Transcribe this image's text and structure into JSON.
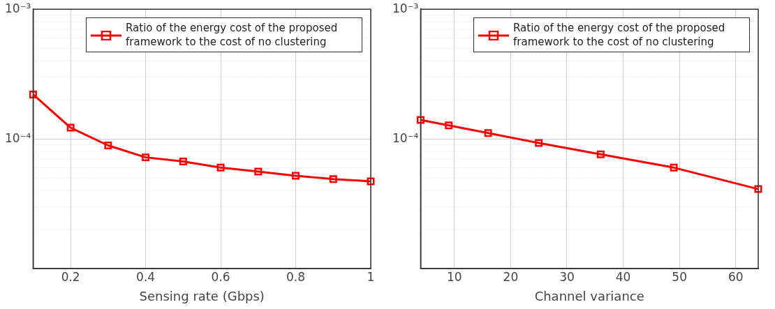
{
  "chart_data": [
    {
      "type": "line",
      "xlabel": "Sensing rate (Gbps)",
      "x": [
        0.1,
        0.2,
        0.3,
        0.4,
        0.5,
        0.6,
        0.7,
        0.8,
        0.9,
        1
      ],
      "series": [
        {
          "name": "Ratio of the energy cost of the proposed framework to the cost of no clustering",
          "color": "#ff0000",
          "values": [
            0.00022,
            0.000122,
            8.9e-05,
            7.2e-05,
            6.7e-05,
            6e-05,
            5.6e-05,
            5.2e-05,
            4.9e-05,
            4.7e-05
          ]
        }
      ],
      "xlim": [
        0.1,
        1
      ],
      "xticks": [
        0.2,
        0.4,
        0.6,
        0.8,
        1
      ],
      "ylim": [
        1e-05,
        0.001
      ],
      "yticks": [
        {
          "value": 1e-05,
          "label": null
        },
        {
          "value": 0.0001,
          "label": "10⁻⁴"
        },
        {
          "value": 0.001,
          "label": "10⁻³"
        }
      ],
      "log": "y",
      "grid": true,
      "legend": "top right",
      "marker": "square",
      "line_style": "solid"
    },
    {
      "type": "line",
      "xlabel": "Channel variance",
      "x": [
        4,
        9,
        16,
        25,
        36,
        49,
        64
      ],
      "series": [
        {
          "name": "Ratio of the energy cost of the proposed framework to the cost of no clustering",
          "color": "#ff0000",
          "values": [
            0.00014,
            0.000127,
            0.000111,
            9.3e-05,
            7.6e-05,
            6e-05,
            4.1e-05
          ]
        }
      ],
      "xlim": [
        4,
        64
      ],
      "xticks": [
        10,
        20,
        30,
        40,
        50,
        60
      ],
      "ylim": [
        1e-05,
        0.001
      ],
      "yticks": [
        {
          "value": 1e-05,
          "label": null
        },
        {
          "value": 0.0001,
          "label": "10⁻⁴"
        },
        {
          "value": 0.001,
          "label": "10⁻³"
        }
      ],
      "log": "y",
      "grid": true,
      "legend": "top right",
      "marker": "square",
      "line_style": "solid"
    }
  ]
}
